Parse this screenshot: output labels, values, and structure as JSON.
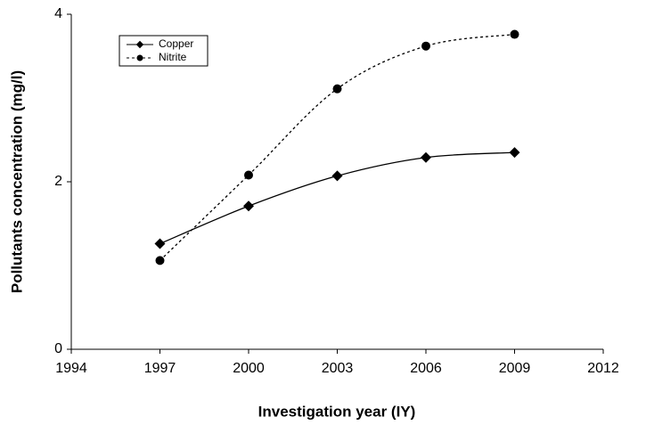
{
  "chart_data": {
    "type": "line",
    "x": [
      1997,
      2000,
      2003,
      2006,
      2009
    ],
    "series": [
      {
        "name": "Copper",
        "color": "#000000",
        "line_style": "solid",
        "marker": "diamond",
        "values": [
          1.26,
          1.71,
          2.07,
          2.29,
          2.35
        ]
      },
      {
        "name": "Nitrite",
        "color": "#000000",
        "line_style": "dotted",
        "marker": "circle",
        "values": [
          1.06,
          2.08,
          3.11,
          3.62,
          3.76
        ]
      }
    ],
    "xlabel": "Investigation year (IY)",
    "ylabel": "Pollutants concentration (mg/l)",
    "xlim": [
      1994,
      2012
    ],
    "xticks": [
      1994,
      1997,
      2000,
      2003,
      2006,
      2009,
      2012
    ],
    "ylim": [
      0,
      4
    ],
    "yticks": [
      0,
      2,
      4
    ],
    "legend": "upper left",
    "smooth": true
  }
}
